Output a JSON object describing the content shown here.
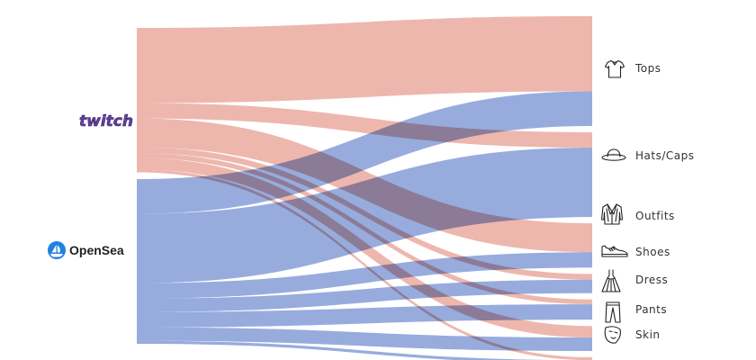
{
  "colors": {
    "twitch": "#e8a397",
    "opensea": "#7a95d3",
    "twitch_logo": "#6441a5"
  },
  "sources": [
    {
      "id": "twitch",
      "label": "twitch",
      "icon": "twitch-logo"
    },
    {
      "id": "opensea",
      "label": "OpenSea",
      "icon": "opensea-logo"
    }
  ],
  "targets": [
    {
      "id": "tops",
      "label": "Tops",
      "icon": "tshirt-icon"
    },
    {
      "id": "hats",
      "label": "Hats/Caps",
      "icon": "hat-icon"
    },
    {
      "id": "outfits",
      "label": "Outfits",
      "icon": "suit-icon"
    },
    {
      "id": "shoes",
      "label": "Shoes",
      "icon": "sneaker-icon"
    },
    {
      "id": "dress",
      "label": "Dress",
      "icon": "dress-icon"
    },
    {
      "id": "pants",
      "label": "Pants",
      "icon": "pants-icon"
    },
    {
      "id": "skin",
      "label": "Skin",
      "icon": "face-mask-icon"
    }
  ],
  "links": [
    {
      "source": "twitch",
      "target": "tops",
      "value": 78
    },
    {
      "source": "twitch",
      "target": "hats",
      "value": 16
    },
    {
      "source": "twitch",
      "target": "outfits",
      "value": 30
    },
    {
      "source": "twitch",
      "target": "shoes",
      "value": 6
    },
    {
      "source": "twitch",
      "target": "dress",
      "value": 5
    },
    {
      "source": "twitch",
      "target": "pants",
      "value": 12
    },
    {
      "source": "twitch",
      "target": "skin",
      "value": 3
    },
    {
      "source": "opensea",
      "target": "tops",
      "value": 36
    },
    {
      "source": "opensea",
      "target": "hats",
      "value": 72
    },
    {
      "source": "opensea",
      "target": "outfits",
      "value": 16
    },
    {
      "source": "opensea",
      "target": "shoes",
      "value": 14
    },
    {
      "source": "opensea",
      "target": "dress",
      "value": 16
    },
    {
      "source": "opensea",
      "target": "pants",
      "value": 14
    },
    {
      "source": "opensea",
      "target": "skin",
      "value": 3
    }
  ]
}
